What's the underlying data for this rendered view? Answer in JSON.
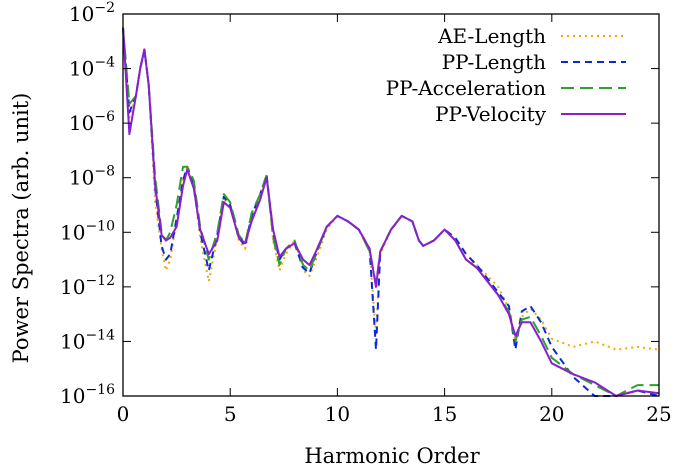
{
  "chart_data": {
    "type": "line",
    "xlabel": "Harmonic Order",
    "ylabel": "Power Spectra (arb. unit)",
    "xlim": [
      0,
      25
    ],
    "ylim": [
      1e-16,
      0.01
    ],
    "yscale": "log",
    "x_ticks": [
      0,
      5,
      10,
      15,
      20,
      25
    ],
    "y_ticks": [
      {
        "value": 1e-16,
        "base": "10",
        "exp": "−16"
      },
      {
        "value": 1e-14,
        "base": "10",
        "exp": "−14"
      },
      {
        "value": 1e-12,
        "base": "10",
        "exp": "−12"
      },
      {
        "value": 1e-10,
        "base": "10",
        "exp": "−10"
      },
      {
        "value": 1e-08,
        "base": "10",
        "exp": "−8"
      },
      {
        "value": 1e-06,
        "base": "10",
        "exp": "−6"
      },
      {
        "value": 0.0001,
        "base": "10",
        "exp": "−4"
      },
      {
        "value": 0.01,
        "base": "10",
        "exp": "−2"
      }
    ],
    "grid": false,
    "legend_position": "top-right",
    "series": [
      {
        "name": "AE-Length",
        "color": "#f5a800",
        "dash": "dotted",
        "x": [
          0,
          0.3,
          0.6,
          0.8,
          1.0,
          1.2,
          1.5,
          1.8,
          2.0,
          2.2,
          2.5,
          2.8,
          3.0,
          3.3,
          3.6,
          4.0,
          4.4,
          4.7,
          5.0,
          5.4,
          5.7,
          6.0,
          6.4,
          6.7,
          7.0,
          7.3,
          7.6,
          8.0,
          8.4,
          8.7,
          9.0,
          9.5,
          10.0,
          10.5,
          11.0,
          11.5,
          11.8,
          12.0,
          12.5,
          13.0,
          13.5,
          13.8,
          14.0,
          14.5,
          15.0,
          15.5,
          16.0,
          16.5,
          17.0,
          17.5,
          18.0,
          18.3,
          18.6,
          19.0,
          19.5,
          20.0,
          21.0,
          22.0,
          23.0,
          24.0,
          25.0
        ],
        "y": [
          -2.5,
          -5.8,
          -5.0,
          -4.0,
          -3.3,
          -4.6,
          -8.9,
          -10.6,
          -11.4,
          -11.0,
          -9.6,
          -8.1,
          -7.6,
          -8.3,
          -10.2,
          -11.8,
          -10.2,
          -8.8,
          -9.0,
          -10.3,
          -10.6,
          -9.5,
          -8.6,
          -7.9,
          -10.3,
          -11.4,
          -10.8,
          -10.3,
          -11.4,
          -11.6,
          -11.0,
          -9.9,
          -9.4,
          -9.6,
          -9.9,
          -10.7,
          -13.8,
          -10.8,
          -9.9,
          -9.4,
          -9.6,
          -10.3,
          -10.5,
          -10.3,
          -9.9,
          -10.3,
          -11.0,
          -11.2,
          -11.6,
          -12.0,
          -12.8,
          -14.0,
          -13.1,
          -12.8,
          -13.2,
          -13.9,
          -14.2,
          -14.0,
          -14.3,
          -14.2,
          -14.3
        ]
      },
      {
        "name": "PP-Length",
        "color": "#0a2ad6",
        "dash": "dashed",
        "x": [
          0,
          0.3,
          0.6,
          0.8,
          1.0,
          1.2,
          1.5,
          1.8,
          2.0,
          2.2,
          2.5,
          2.8,
          3.0,
          3.3,
          3.6,
          4.0,
          4.4,
          4.7,
          5.0,
          5.4,
          5.7,
          6.0,
          6.4,
          6.7,
          7.0,
          7.3,
          7.6,
          8.0,
          8.4,
          8.7,
          9.0,
          9.5,
          10.0,
          10.5,
          11.0,
          11.5,
          11.8,
          12.0,
          12.5,
          13.0,
          13.5,
          13.8,
          14.0,
          14.5,
          15.0,
          15.5,
          16.0,
          16.5,
          17.0,
          17.5,
          18.0,
          18.3,
          18.6,
          19.0,
          19.5,
          20.0,
          21.0,
          22.0,
          23.0,
          24.0,
          25.0
        ],
        "y": [
          -2.5,
          -5.6,
          -5.0,
          -4.0,
          -3.3,
          -4.6,
          -8.4,
          -10.5,
          -11.0,
          -10.8,
          -9.5,
          -8.1,
          -7.6,
          -8.3,
          -10.0,
          -11.4,
          -10.1,
          -8.7,
          -9.0,
          -10.2,
          -10.5,
          -9.4,
          -8.6,
          -7.9,
          -10.0,
          -11.0,
          -10.6,
          -10.4,
          -11.3,
          -11.5,
          -10.8,
          -9.8,
          -9.4,
          -9.6,
          -9.9,
          -10.6,
          -14.3,
          -10.7,
          -9.9,
          -9.4,
          -9.6,
          -10.3,
          -10.5,
          -10.3,
          -9.9,
          -10.2,
          -10.8,
          -11.2,
          -11.7,
          -12.2,
          -12.7,
          -14.3,
          -12.9,
          -12.7,
          -13.3,
          -14.2,
          -15.3,
          -16.0,
          -16.2,
          -15.8,
          -16.0
        ]
      },
      {
        "name": "PP-Acceleration",
        "color": "#2ea02c",
        "dash": "longdash",
        "x": [
          0,
          0.3,
          0.6,
          0.8,
          1.0,
          1.2,
          1.5,
          1.8,
          2.0,
          2.2,
          2.5,
          2.8,
          3.0,
          3.3,
          3.6,
          4.0,
          4.4,
          4.7,
          5.0,
          5.4,
          5.7,
          6.0,
          6.4,
          6.7,
          7.0,
          7.3,
          7.6,
          8.0,
          8.4,
          8.7,
          9.0,
          9.5,
          10.0,
          10.5,
          11.0,
          11.5,
          11.8,
          12.0,
          12.5,
          13.0,
          13.5,
          13.8,
          14.0,
          14.5,
          15.0,
          15.5,
          16.0,
          16.5,
          17.0,
          17.5,
          18.0,
          18.3,
          18.6,
          19.0,
          19.5,
          20.0,
          21.0,
          22.0,
          23.0,
          24.0,
          25.0
        ],
        "y": [
          -2.5,
          -5.3,
          -5.0,
          -4.0,
          -3.3,
          -4.6,
          -8.0,
          -10.0,
          -10.3,
          -10.0,
          -9.0,
          -7.6,
          -7.6,
          -8.1,
          -9.8,
          -11.0,
          -10.0,
          -8.6,
          -8.9,
          -10.1,
          -10.4,
          -9.3,
          -8.6,
          -7.9,
          -10.2,
          -11.2,
          -10.6,
          -10.3,
          -11.2,
          -11.4,
          -10.8,
          -9.8,
          -9.4,
          -9.6,
          -9.9,
          -10.7,
          -11.9,
          -10.7,
          -9.9,
          -9.4,
          -9.6,
          -10.3,
          -10.5,
          -10.3,
          -9.9,
          -10.3,
          -11.0,
          -11.3,
          -11.8,
          -12.3,
          -12.9,
          -14.0,
          -13.2,
          -13.1,
          -13.8,
          -14.6,
          -15.2,
          -15.6,
          -16.0,
          -15.6,
          -15.6
        ]
      },
      {
        "name": "PP-Velocity",
        "color": "#8a1fd1",
        "dash": "solid",
        "x": [
          0,
          0.3,
          0.6,
          0.8,
          1.0,
          1.2,
          1.5,
          1.8,
          2.0,
          2.2,
          2.5,
          2.8,
          3.0,
          3.3,
          3.6,
          4.0,
          4.4,
          4.7,
          5.0,
          5.4,
          5.7,
          6.0,
          6.4,
          6.7,
          7.0,
          7.3,
          7.6,
          8.0,
          8.4,
          8.7,
          9.0,
          9.5,
          10.0,
          10.5,
          11.0,
          11.5,
          11.8,
          12.0,
          12.5,
          13.0,
          13.5,
          13.8,
          14.0,
          14.5,
          15.0,
          15.5,
          16.0,
          16.5,
          17.0,
          17.5,
          18.0,
          18.3,
          18.6,
          19.0,
          19.5,
          20.0,
          21.0,
          22.0,
          23.0,
          24.0,
          25.0
        ],
        "y": [
          -2.5,
          -6.4,
          -5.0,
          -4.0,
          -3.3,
          -4.6,
          -8.3,
          -10.1,
          -10.3,
          -10.2,
          -9.8,
          -8.3,
          -7.7,
          -8.4,
          -9.9,
          -10.8,
          -10.3,
          -8.9,
          -9.1,
          -10.2,
          -10.4,
          -9.6,
          -8.8,
          -8.0,
          -9.9,
          -10.9,
          -10.6,
          -10.4,
          -11.0,
          -11.2,
          -10.7,
          -9.8,
          -9.4,
          -9.6,
          -9.9,
          -10.6,
          -12.0,
          -10.7,
          -9.9,
          -9.4,
          -9.6,
          -10.3,
          -10.5,
          -10.3,
          -9.9,
          -10.3,
          -11.0,
          -11.3,
          -11.8,
          -12.3,
          -13.0,
          -13.8,
          -13.3,
          -13.3,
          -14.0,
          -14.8,
          -15.2,
          -15.5,
          -16.0,
          -15.8,
          -15.9
        ]
      }
    ]
  }
}
